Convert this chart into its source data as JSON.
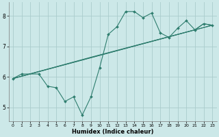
{
  "title": "",
  "xlabel": "Humidex (Indice chaleur)",
  "bg_color": "#cce8e8",
  "line_color": "#2e7d6e",
  "grid_color": "#aacccc",
  "xlim": [
    -0.5,
    23.5
  ],
  "ylim": [
    4.55,
    8.45
  ],
  "yticks": [
    5,
    6,
    7,
    8
  ],
  "xticks": [
    0,
    1,
    2,
    3,
    4,
    5,
    6,
    7,
    8,
    9,
    10,
    11,
    12,
    13,
    14,
    15,
    16,
    17,
    18,
    19,
    20,
    21,
    22,
    23
  ],
  "line1_x": [
    0,
    1,
    3,
    4,
    5,
    6,
    7,
    8,
    9,
    10,
    11,
    12,
    13,
    14,
    15,
    16,
    17,
    18,
    19,
    20,
    21,
    22,
    23
  ],
  "line1_y": [
    5.95,
    6.1,
    6.1,
    5.7,
    5.65,
    5.2,
    5.35,
    4.75,
    5.35,
    6.3,
    7.4,
    7.65,
    8.15,
    8.15,
    7.95,
    8.1,
    7.45,
    7.3,
    7.6,
    7.85,
    7.55,
    7.75,
    7.7
  ],
  "line2_x": [
    0,
    21,
    22,
    23
  ],
  "line2_y": [
    5.95,
    7.55,
    7.75,
    7.7
  ],
  "line3_x": [
    0,
    9,
    23
  ],
  "line3_y": [
    5.95,
    6.65,
    7.7
  ],
  "line4_x": [
    0,
    23
  ],
  "line4_y": [
    5.95,
    7.7
  ]
}
